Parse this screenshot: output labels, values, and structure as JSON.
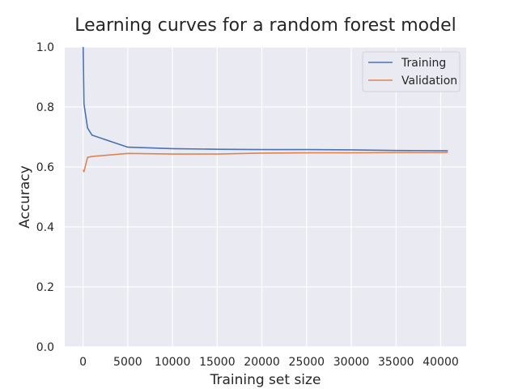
{
  "chart_data": {
    "type": "line",
    "title": "Learning curves for a random forest model",
    "xlabel": "Training set size",
    "ylabel": "Accuracy",
    "xlim": [
      -2050,
      42850
    ],
    "ylim": [
      0.0,
      1.0
    ],
    "xticks": [
      0,
      5000,
      10000,
      15000,
      20000,
      25000,
      30000,
      35000,
      40000
    ],
    "xtick_labels": [
      "0",
      "5000",
      "10000",
      "15000",
      "20000",
      "25000",
      "30000",
      "35000",
      "40000"
    ],
    "yticks": [
      0.0,
      0.2,
      0.4,
      0.6,
      0.8,
      1.0
    ],
    "ytick_labels": [
      "0.0",
      "0.2",
      "0.4",
      "0.6",
      "0.8",
      "1.0"
    ],
    "grid": true,
    "legend_position": "top-right",
    "background_color": "#eaeaf2",
    "grid_color": "#ffffff",
    "series": [
      {
        "name": "Training",
        "color": "#4c72b0",
        "x": [
          10,
          100,
          500,
          1000,
          5000,
          10000,
          15000,
          20000,
          25000,
          30000,
          35000,
          40800
        ],
        "y": [
          1.0,
          0.81,
          0.73,
          0.706,
          0.666,
          0.661,
          0.659,
          0.658,
          0.658,
          0.657,
          0.655,
          0.654
        ]
      },
      {
        "name": "Validation",
        "color": "#dd8452",
        "x": [
          10,
          100,
          500,
          1000,
          5000,
          10000,
          15000,
          20000,
          25000,
          30000,
          35000,
          40800
        ],
        "y": [
          0.59,
          0.584,
          0.632,
          0.635,
          0.645,
          0.643,
          0.643,
          0.646,
          0.647,
          0.647,
          0.648,
          0.648
        ]
      }
    ]
  }
}
